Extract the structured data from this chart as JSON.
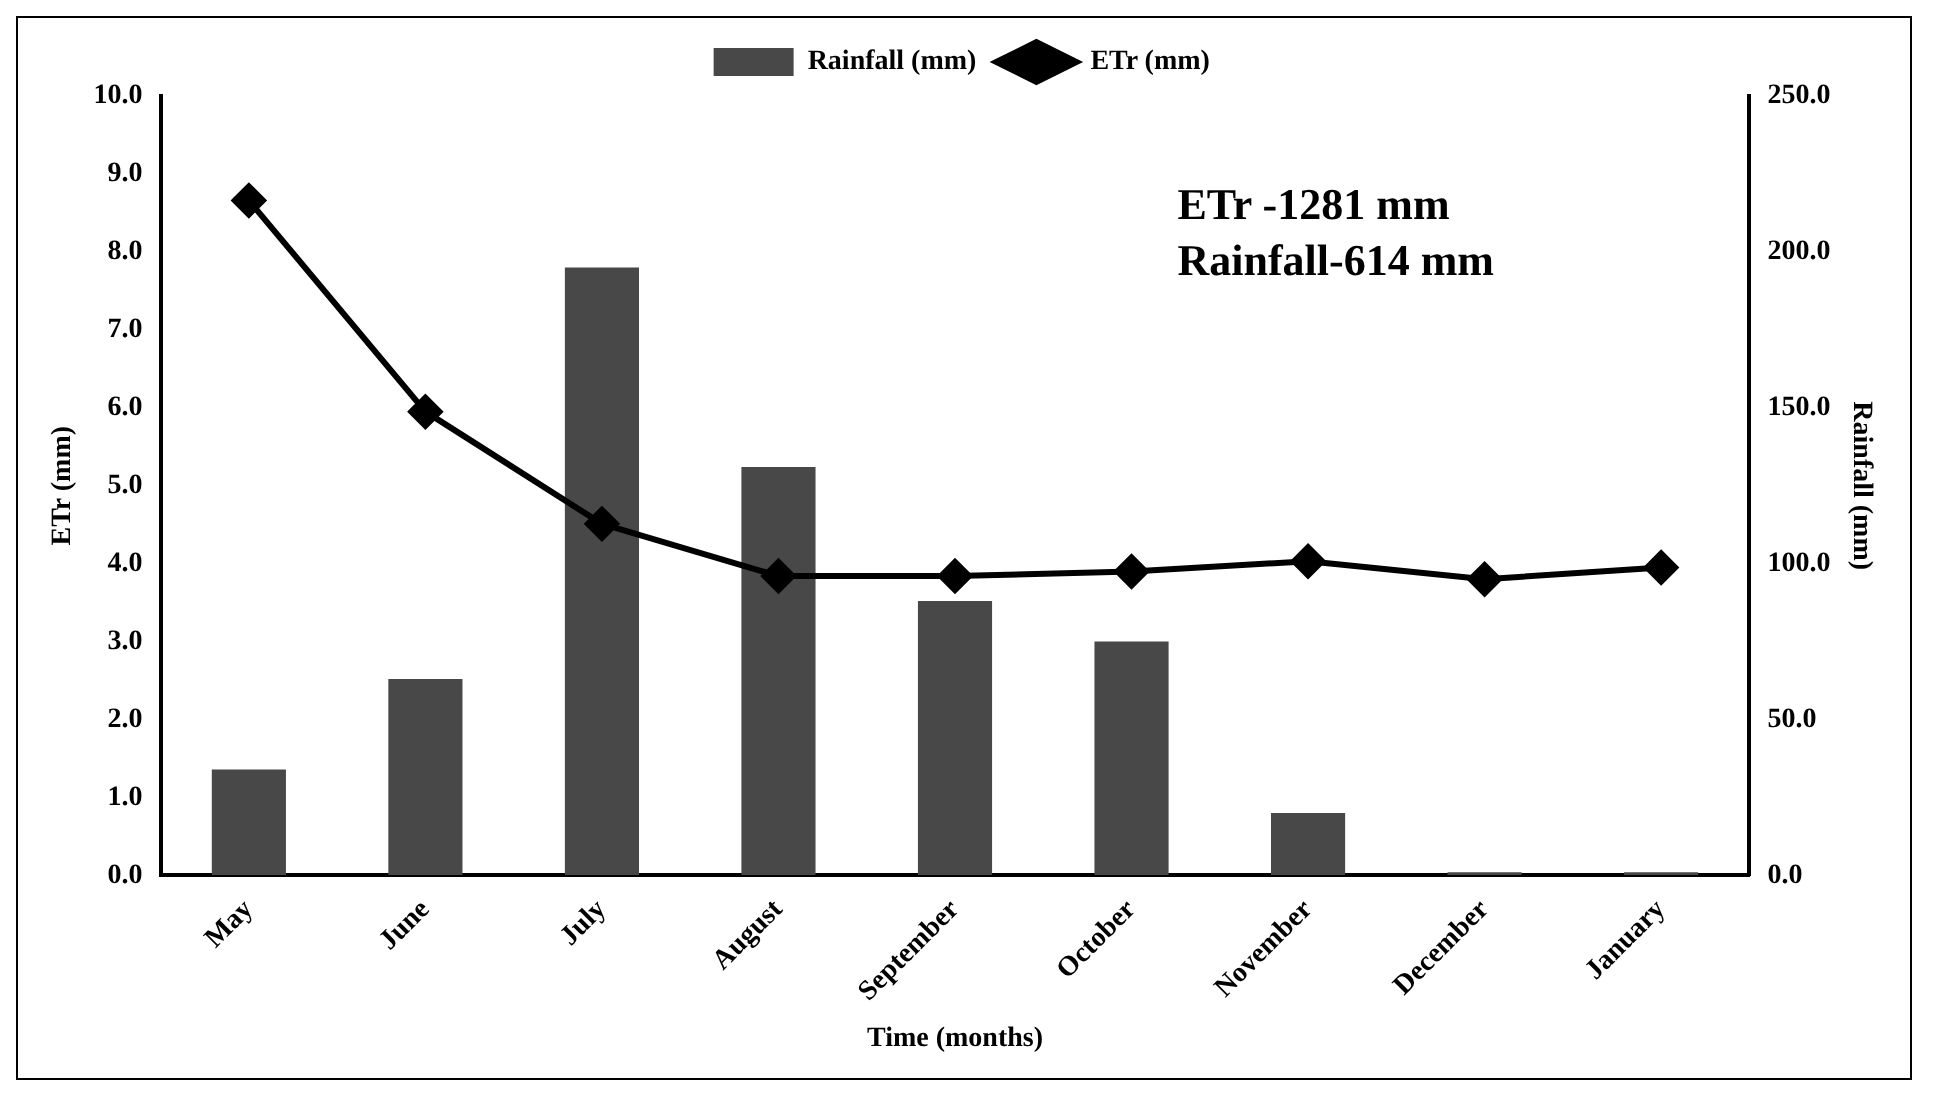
{
  "chart_data": {
    "type": "bar",
    "xlabel": "Time (months)",
    "ylabel": "ETr (mm)",
    "y2label": "Rainfall (mm)",
    "categories": [
      "May",
      "June",
      "July",
      "August",
      "September",
      "October",
      "November",
      "December",
      "January"
    ],
    "series": [
      {
        "name": "Rainfall (mm)",
        "axis": "y2",
        "color": "#484848",
        "values": [
          34,
          63,
          195,
          131,
          88,
          75,
          20,
          1,
          1
        ]
      },
      {
        "name": "ETr (mm)",
        "type": "line",
        "axis": "y",
        "color": "#000000",
        "marker": "diamond",
        "line_style": "solid",
        "values": [
          8.66,
          5.95,
          4.51,
          3.84,
          3.84,
          3.9,
          4.03,
          3.8,
          3.95
        ]
      }
    ],
    "ylim": [
      0,
      10
    ],
    "yticks": [
      {
        "value": 0,
        "label": "0.0"
      },
      {
        "value": 1,
        "label": "1.0"
      },
      {
        "value": 2,
        "label": "2.0"
      },
      {
        "value": 3,
        "label": "3.0"
      },
      {
        "value": 4,
        "label": "4.0"
      },
      {
        "value": 5,
        "label": "5.0"
      },
      {
        "value": 6,
        "label": "6.0"
      },
      {
        "value": 7,
        "label": "7.0"
      },
      {
        "value": 8,
        "label": "8.0"
      },
      {
        "value": 9,
        "label": "9.0"
      },
      {
        "value": 10,
        "label": "10.0"
      }
    ],
    "y2lim": [
      0,
      250
    ],
    "y2ticks": [
      {
        "value": 0,
        "label": "0.0"
      },
      {
        "value": 50,
        "label": "50.0"
      },
      {
        "value": 100,
        "label": "100.0"
      },
      {
        "value": 150,
        "label": "150.0"
      },
      {
        "value": 200,
        "label": "200.0"
      },
      {
        "value": 250,
        "label": "250.0"
      }
    ],
    "annotations": [
      "ETr -1281 mm",
      "Rainfall-614 mm"
    ],
    "legend": "top",
    "grid": false
  }
}
